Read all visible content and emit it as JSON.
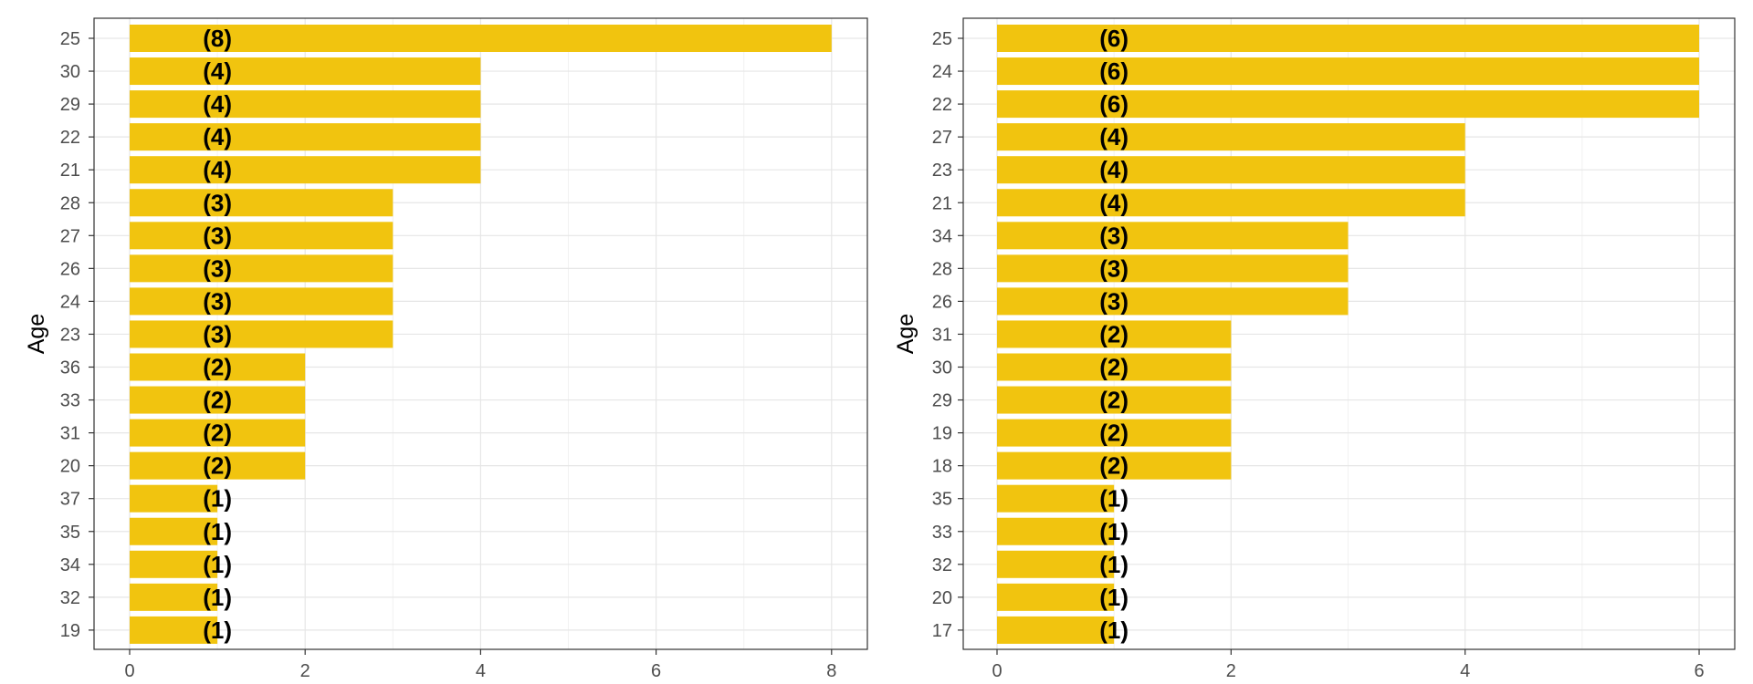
{
  "chart_data": [
    {
      "type": "bar",
      "orientation": "horizontal",
      "ylabel": "Age",
      "xlabel": "",
      "xlim": [
        0,
        8
      ],
      "x_ticks": [
        0,
        2,
        4,
        6,
        8
      ],
      "grid": true,
      "bar_color": "#F1C40F",
      "categories": [
        "25",
        "30",
        "29",
        "22",
        "21",
        "28",
        "27",
        "26",
        "24",
        "23",
        "36",
        "33",
        "31",
        "20",
        "37",
        "35",
        "34",
        "32",
        "19"
      ],
      "values": [
        8,
        4,
        4,
        4,
        4,
        3,
        3,
        3,
        3,
        3,
        2,
        2,
        2,
        2,
        1,
        1,
        1,
        1,
        1
      ],
      "data_labels": [
        "(8)",
        "(4)",
        "(4)",
        "(4)",
        "(4)",
        "(3)",
        "(3)",
        "(3)",
        "(3)",
        "(3)",
        "(2)",
        "(2)",
        "(2)",
        "(2)",
        "(1)",
        "(1)",
        "(1)",
        "(1)",
        "(1)"
      ]
    },
    {
      "type": "bar",
      "orientation": "horizontal",
      "ylabel": "Age",
      "xlabel": "",
      "xlim": [
        0,
        6
      ],
      "x_ticks": [
        0,
        2,
        4,
        6
      ],
      "grid": true,
      "bar_color": "#F1C40F",
      "categories": [
        "25",
        "24",
        "22",
        "27",
        "23",
        "21",
        "34",
        "28",
        "26",
        "31",
        "30",
        "29",
        "19",
        "18",
        "35",
        "33",
        "32",
        "20",
        "17"
      ],
      "values": [
        6,
        6,
        6,
        4,
        4,
        4,
        3,
        3,
        3,
        2,
        2,
        2,
        2,
        2,
        1,
        1,
        1,
        1,
        1
      ],
      "data_labels": [
        "(6)",
        "(6)",
        "(6)",
        "(4)",
        "(4)",
        "(4)",
        "(3)",
        "(3)",
        "(3)",
        "(2)",
        "(2)",
        "(2)",
        "(2)",
        "(2)",
        "(1)",
        "(1)",
        "(1)",
        "(1)",
        "(1)"
      ]
    }
  ]
}
